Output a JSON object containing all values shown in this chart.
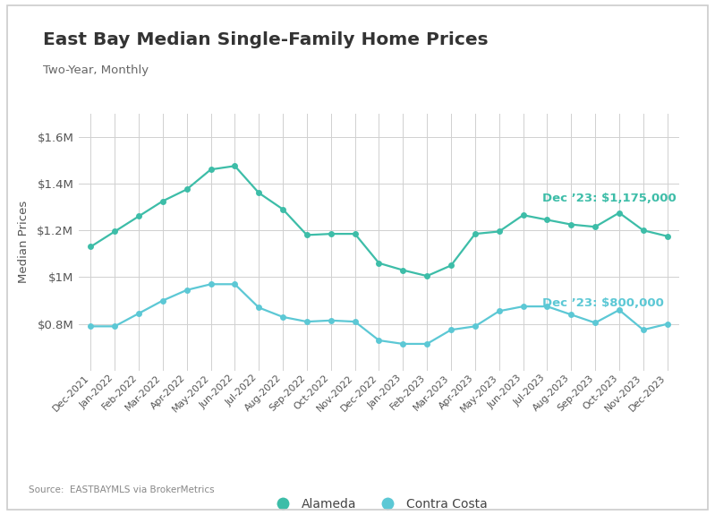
{
  "title": "East Bay Median Single-Family Home Prices",
  "subtitle": "Two-Year, Monthly",
  "source": "Source:  EASTBAYMLS via BrokerMetrics",
  "ylabel": "Median Prices",
  "background_color": "#ffffff",
  "grid_color": "#d0d0d0",
  "legend_labels": [
    "Alameda",
    "Contra Costa"
  ],
  "labels": [
    "Dec-2021",
    "Jan-2022",
    "Feb-2022",
    "Mar-2022",
    "Apr-2022",
    "May-2022",
    "Jun-2022",
    "Jul-2022",
    "Aug-2022",
    "Sep-2022",
    "Oct-2022",
    "Nov-2022",
    "Dec-2022",
    "Jan-2023",
    "Feb-2023",
    "Mar-2023",
    "Apr-2023",
    "May-2023",
    "Jun-2023",
    "Jul-2023",
    "Aug-2023",
    "Sep-2023",
    "Oct-2023",
    "Nov-2023",
    "Dec-2023"
  ],
  "alameda": [
    1130000,
    1195000,
    1260000,
    1325000,
    1375000,
    1460000,
    1475000,
    1360000,
    1290000,
    1180000,
    1185000,
    1185000,
    1060000,
    1030000,
    1005000,
    1050000,
    1185000,
    1195000,
    1265000,
    1245000,
    1225000,
    1215000,
    1275000,
    1200000,
    1175000
  ],
  "contra_costa": [
    790000,
    790000,
    845000,
    900000,
    945000,
    970000,
    970000,
    870000,
    830000,
    810000,
    815000,
    810000,
    730000,
    715000,
    715000,
    775000,
    790000,
    855000,
    875000,
    875000,
    840000,
    805000,
    860000,
    775000,
    800000
  ],
  "alameda_color": "#3dbda8",
  "contra_costa_color": "#5cc8d5",
  "annotation_alameda_color": "#3dbda8",
  "annotation_contra_costa_color": "#5cc8d5",
  "ylim": [
    600000,
    1700000
  ],
  "yticks": [
    800000,
    1000000,
    1200000,
    1400000,
    1600000
  ],
  "ytick_labels": [
    "$0.8M",
    "$1M",
    "$1.2M",
    "$1.4M",
    "$1.6M"
  ],
  "annotation_alameda": "Dec ’23: $1,175,000",
  "annotation_contra_costa": "Dec ’23: $800,000",
  "outer_border_color": "#cccccc",
  "title_color": "#333333",
  "subtitle_color": "#666666",
  "tick_label_color": "#555555",
  "ylabel_color": "#555555",
  "source_color": "#888888"
}
